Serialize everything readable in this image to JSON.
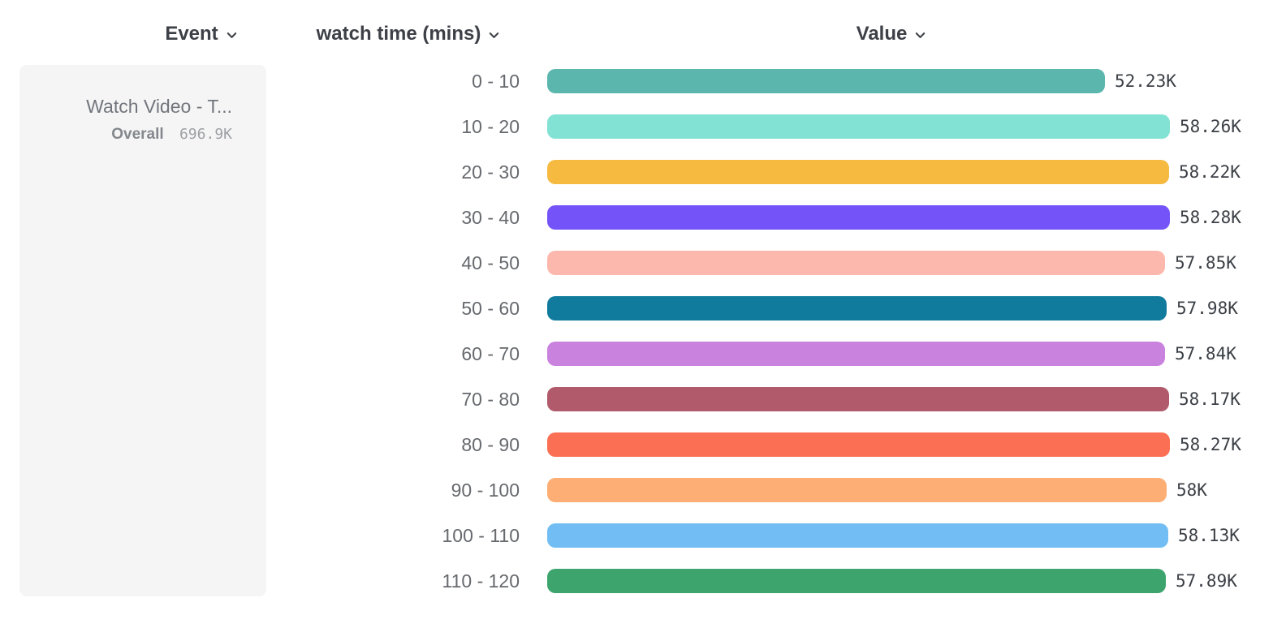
{
  "columns": {
    "event": {
      "label": "Event"
    },
    "bucket": {
      "label": "watch time (mins)"
    },
    "value": {
      "label": "Value"
    }
  },
  "event_card": {
    "title": "Watch Video - T...",
    "overall_label": "Overall",
    "overall_value": "696.9K"
  },
  "chart_data": {
    "type": "bar",
    "orientation": "horizontal",
    "title": "",
    "xlabel": "Value",
    "ylabel": "watch time (mins)",
    "series_name": "Watch Video - Total",
    "categories": [
      "0 - 10",
      "10 - 20",
      "20 - 30",
      "30 - 40",
      "40 - 50",
      "50 - 60",
      "60 - 70",
      "70 - 80",
      "80 - 90",
      "90 - 100",
      "100 - 110",
      "110 - 120"
    ],
    "values": [
      52230,
      58260,
      58220,
      58280,
      57850,
      57980,
      57840,
      58170,
      58270,
      58000,
      58130,
      57890
    ],
    "value_labels": [
      "52.23K",
      "58.26K",
      "58.22K",
      "58.28K",
      "57.85K",
      "57.98K",
      "57.84K",
      "58.17K",
      "58.27K",
      "58K",
      "58.13K",
      "57.89K"
    ],
    "bar_colors": [
      "#5bb7ae",
      "#82e2d3",
      "#f6ba41",
      "#7454f8",
      "#fcb8ad",
      "#117b9d",
      "#c982dd",
      "#b05a6c",
      "#fb7055",
      "#fcae75",
      "#72bef4",
      "#3ea46e"
    ],
    "xlim": [
      0,
      58280
    ],
    "grid": false,
    "legend": false
  },
  "icons": {
    "chevron_down": "chevron-down"
  },
  "layout_colors": {
    "header_text": "#3d4147",
    "category_text": "#66696e",
    "value_text": "#3b4046",
    "card_bg": "#f5f5f6"
  }
}
